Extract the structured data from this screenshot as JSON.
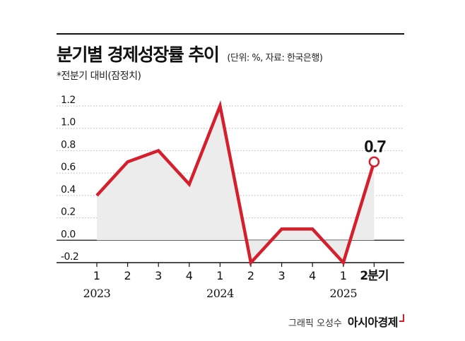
{
  "header": {
    "title": "분기별 경제성장률 추이",
    "unit": "(단위: %, 자료: 한국은행)",
    "note": "*전분기 대비(잠정치)"
  },
  "chart_data": {
    "type": "line",
    "title": "분기별 경제성장률 추이",
    "unit_note": "(단위: %, 자료: 한국은행)",
    "subtitle": "*전분기 대비(잠정치)",
    "categories": [
      "1",
      "2",
      "3",
      "4",
      "1",
      "2",
      "3",
      "4",
      "1",
      "2분기"
    ],
    "years": [
      {
        "label": "2023",
        "category_index": 0
      },
      {
        "label": "2024",
        "category_index": 4
      },
      {
        "label": "2025",
        "category_index": 8
      }
    ],
    "series": [
      {
        "name": "경제성장률",
        "values": [
          0.4,
          0.7,
          0.8,
          0.5,
          1.2,
          -0.2,
          0.1,
          0.1,
          -0.2,
          0.7
        ]
      }
    ],
    "yticks": [
      1.2,
      1.0,
      0.8,
      0.6,
      0.4,
      0.2,
      0.0,
      -0.2
    ],
    "ytick_labels": [
      "1.2",
      "1.0",
      "0.8",
      "0.6",
      "0.4",
      "0.2",
      "0.0",
      "-0.2"
    ],
    "ylim": [
      -0.2,
      1.2
    ],
    "highlight": {
      "index": 9,
      "label": "0.7"
    },
    "colors": {
      "line": "#d61f2c",
      "area": "#ececec",
      "grid": "#b5b5b5",
      "axis": "#111111"
    },
    "grid": true
  },
  "footer": {
    "credit": "그래픽 오성수",
    "logo_text": "아시아경제"
  }
}
